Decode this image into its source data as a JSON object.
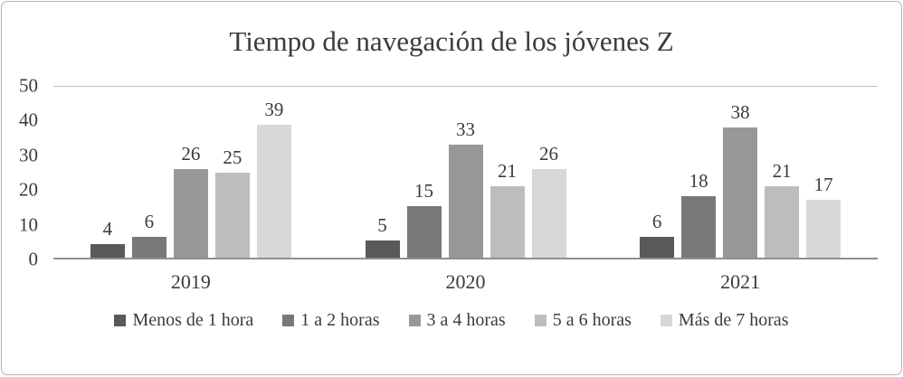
{
  "chart_data": {
    "type": "bar",
    "title": "Tiempo de navegación de los jóvenes Z",
    "categories": [
      "2019",
      "2020",
      "2021"
    ],
    "series": [
      {
        "name": "Menos de 1 hora",
        "color": "#595959",
        "values": [
          4,
          5,
          6
        ]
      },
      {
        "name": "1 a 2 horas",
        "color": "#787878",
        "values": [
          6,
          15,
          18
        ]
      },
      {
        "name": "3 a 4 horas",
        "color": "#989898",
        "values": [
          26,
          33,
          38
        ]
      },
      {
        "name": "5 a 6 horas",
        "color": "#bdbdbd",
        "values": [
          25,
          21,
          21
        ]
      },
      {
        "name": "Más de 7 horas",
        "color": "#d8d8d8",
        "values": [
          39,
          26,
          17
        ]
      }
    ],
    "xlabel": "",
    "ylabel": "",
    "ylim": [
      0,
      50
    ],
    "yticks": [
      0,
      10,
      20,
      30,
      40,
      50
    ],
    "grid": false,
    "data_labels": true,
    "legend_position": "bottom"
  }
}
